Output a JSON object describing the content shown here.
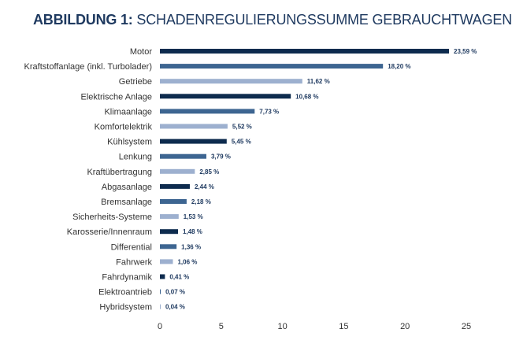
{
  "header": {
    "title_lead": "ABBILDUNG 1:",
    "title_rest": "SCHADENREGULIERUNGSSUMME GEBRAUCHTWAGEN"
  },
  "chart_data": {
    "type": "bar",
    "orientation": "horizontal",
    "title": "ABBILDUNG 1: SCHADENREGULIERUNGSSUMME GEBRAUCHTWAGEN",
    "xlabel": "",
    "ylabel": "",
    "xlim": [
      0,
      25
    ],
    "x_ticks": [
      0,
      5,
      10,
      15,
      20,
      25
    ],
    "grid": false,
    "categories": [
      "Motor",
      "Kraftstoffanlage (inkl. Turbolader)",
      "Getriebe",
      "Elektrische Anlage",
      "Klimaanlage",
      "Komfortelektrik",
      "Kühlsystem",
      "Lenkung",
      "Kraftübertragung",
      "Abgasanlage",
      "Bremsanlage",
      "Sicherheits-Systeme",
      "Karosserie/Innenraum",
      "Differential",
      "Fahrwerk",
      "Fahrdynamik",
      "Elektroantrieb",
      "Hybridsystem"
    ],
    "values": [
      23.59,
      18.2,
      11.62,
      10.68,
      7.73,
      5.52,
      5.45,
      3.79,
      2.85,
      2.44,
      2.18,
      1.53,
      1.48,
      1.36,
      1.06,
      0.41,
      0.07,
      0.04
    ],
    "value_labels": [
      "23,59 %",
      "18,20 %",
      "11,62 %",
      "10,68 %",
      "7,73 %",
      "5,52 %",
      "5,45 %",
      "3,79 %",
      "2,85 %",
      "2,44 %",
      "2,18 %",
      "1,53 %",
      "1,48 %",
      "1,36 %",
      "1,06 %",
      "0,41 %",
      "0,07 %",
      "0,04 %"
    ],
    "bar_colors": [
      "#0d2b4e",
      "#3d6591",
      "#9db0cf",
      "#0d2b4e",
      "#3d6591",
      "#9db0cf",
      "#0d2b4e",
      "#3d6591",
      "#9db0cf",
      "#0d2b4e",
      "#3d6591",
      "#9db0cf",
      "#0d2b4e",
      "#3d6591",
      "#9db0cf",
      "#0d2b4e",
      "#3d6591",
      "#9db0cf"
    ]
  }
}
